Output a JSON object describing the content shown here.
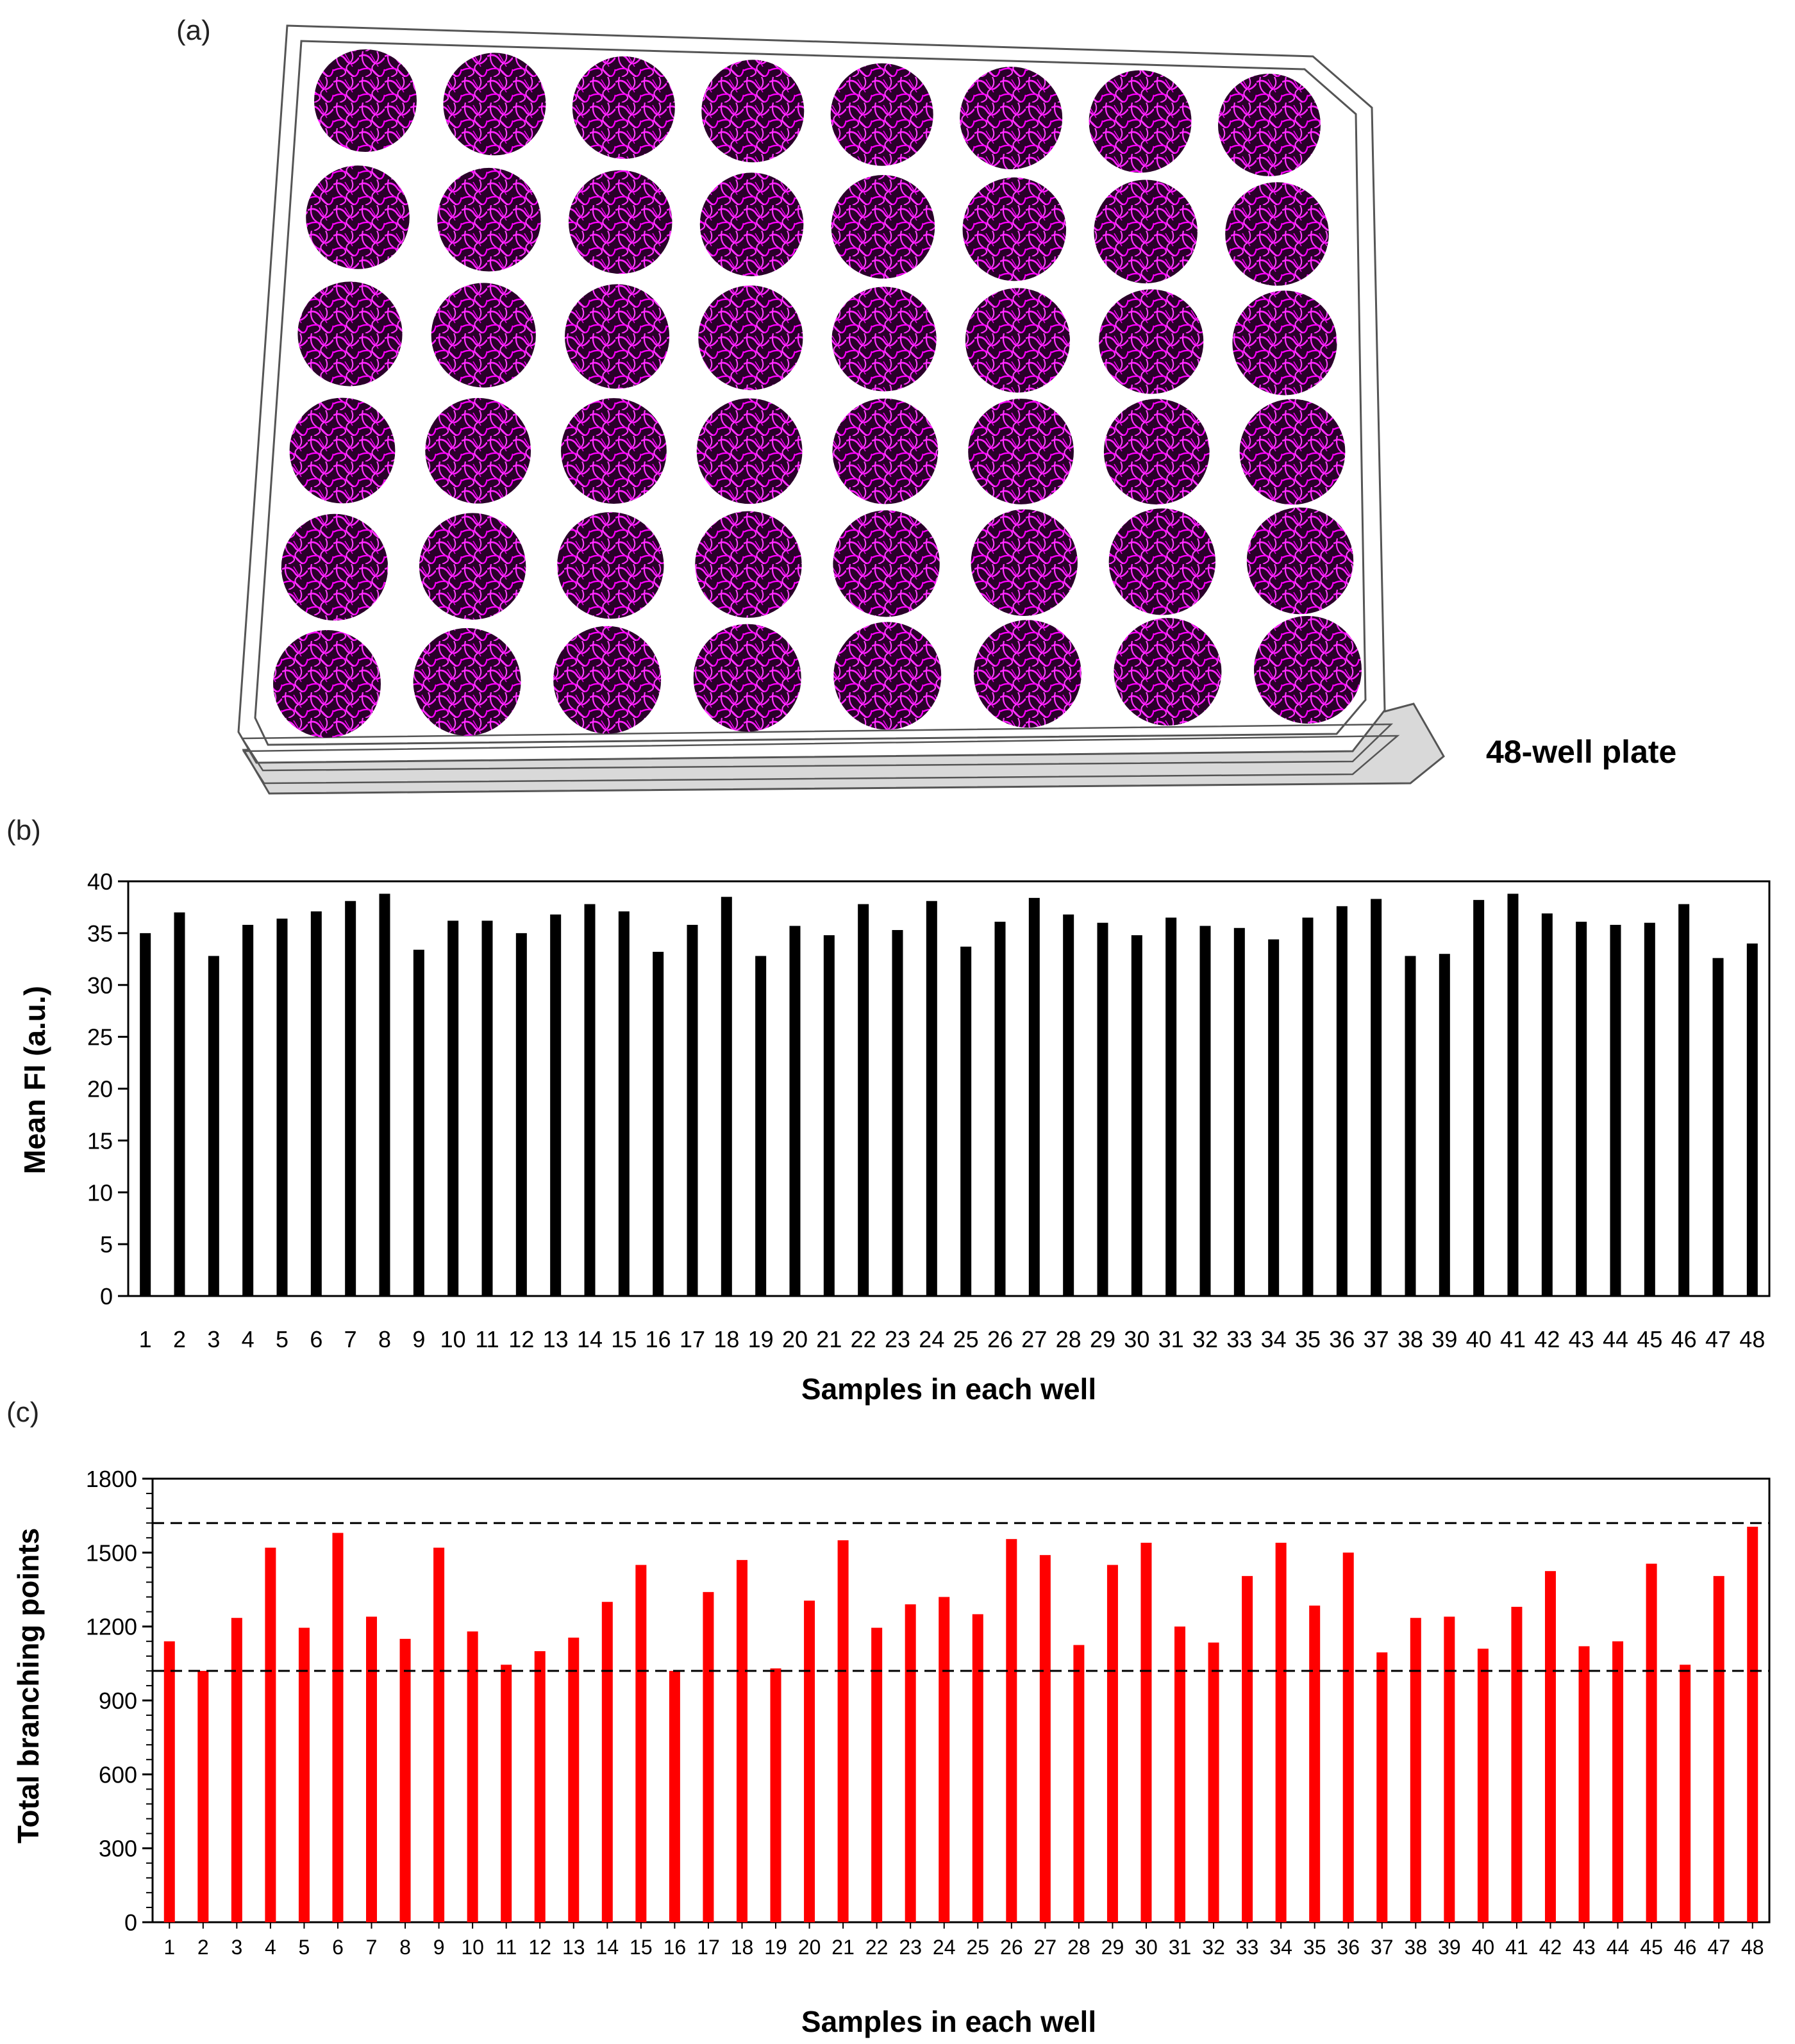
{
  "panels": {
    "a": "(a)",
    "b": "(b)",
    "c": "(c)"
  },
  "plate": {
    "label": "48-well plate",
    "rows": 6,
    "cols": 8,
    "well_color": "#ff00ff",
    "well_bg": "#1a001a"
  },
  "chart_data": [
    {
      "id": "b",
      "type": "bar",
      "title": "",
      "xlabel": "Samples in each well",
      "ylabel": "Mean FI (a.u.)",
      "ylim": [
        0,
        40
      ],
      "yticks": [
        0,
        5,
        10,
        15,
        20,
        25,
        30,
        35,
        40
      ],
      "color": "#000000",
      "categories": [
        "1",
        "2",
        "3",
        "4",
        "5",
        "6",
        "7",
        "8",
        "9",
        "10",
        "11",
        "12",
        "13",
        "14",
        "15",
        "16",
        "17",
        "18",
        "19",
        "20",
        "21",
        "22",
        "23",
        "24",
        "25",
        "26",
        "27",
        "28",
        "29",
        "30",
        "31",
        "32",
        "33",
        "34",
        "35",
        "36",
        "37",
        "38",
        "39",
        "40",
        "41",
        "42",
        "43",
        "44",
        "45",
        "46",
        "47",
        "48"
      ],
      "values": [
        35,
        37,
        32.8,
        35.8,
        36.4,
        37.1,
        38.1,
        38.8,
        33.4,
        36.2,
        36.2,
        35,
        36.8,
        37.8,
        37.1,
        33.2,
        35.8,
        38.5,
        32.8,
        35.7,
        34.8,
        37.8,
        35.3,
        38.1,
        33.7,
        36.1,
        38.4,
        36.8,
        36,
        34.8,
        36.5,
        35.7,
        35.5,
        34.4,
        36.5,
        37.6,
        38.3,
        32.8,
        33,
        38.2,
        38.8,
        36.9,
        36.1,
        35.8,
        36,
        37.8,
        32.6,
        34
      ]
    },
    {
      "id": "c",
      "type": "bar",
      "title": "",
      "xlabel": "Samples in each well",
      "ylabel": "Total branching points",
      "ylim": [
        0,
        1800
      ],
      "yticks": [
        0,
        300,
        600,
        900,
        1200,
        1500,
        1800
      ],
      "color": "#ff0000",
      "reference_lines": [
        1620,
        1020
      ],
      "categories": [
        "1",
        "2",
        "3",
        "4",
        "5",
        "6",
        "7",
        "8",
        "9",
        "10",
        "11",
        "12",
        "13",
        "14",
        "15",
        "16",
        "17",
        "18",
        "19",
        "20",
        "21",
        "22",
        "23",
        "24",
        "25",
        "26",
        "27",
        "28",
        "29",
        "30",
        "31",
        "32",
        "33",
        "34",
        "35",
        "36",
        "37",
        "38",
        "39",
        "40",
        "41",
        "42",
        "43",
        "44",
        "45",
        "46",
        "47",
        "48"
      ],
      "values": [
        1140,
        1020,
        1235,
        1520,
        1195,
        1580,
        1240,
        1150,
        1520,
        1180,
        1045,
        1100,
        1155,
        1300,
        1450,
        1020,
        1340,
        1470,
        1030,
        1305,
        1550,
        1195,
        1290,
        1320,
        1250,
        1555,
        1490,
        1125,
        1450,
        1540,
        1200,
        1135,
        1405,
        1540,
        1285,
        1500,
        1095,
        1235,
        1240,
        1110,
        1280,
        1425,
        1120,
        1140,
        1455,
        1045,
        1405,
        1605
      ]
    }
  ]
}
